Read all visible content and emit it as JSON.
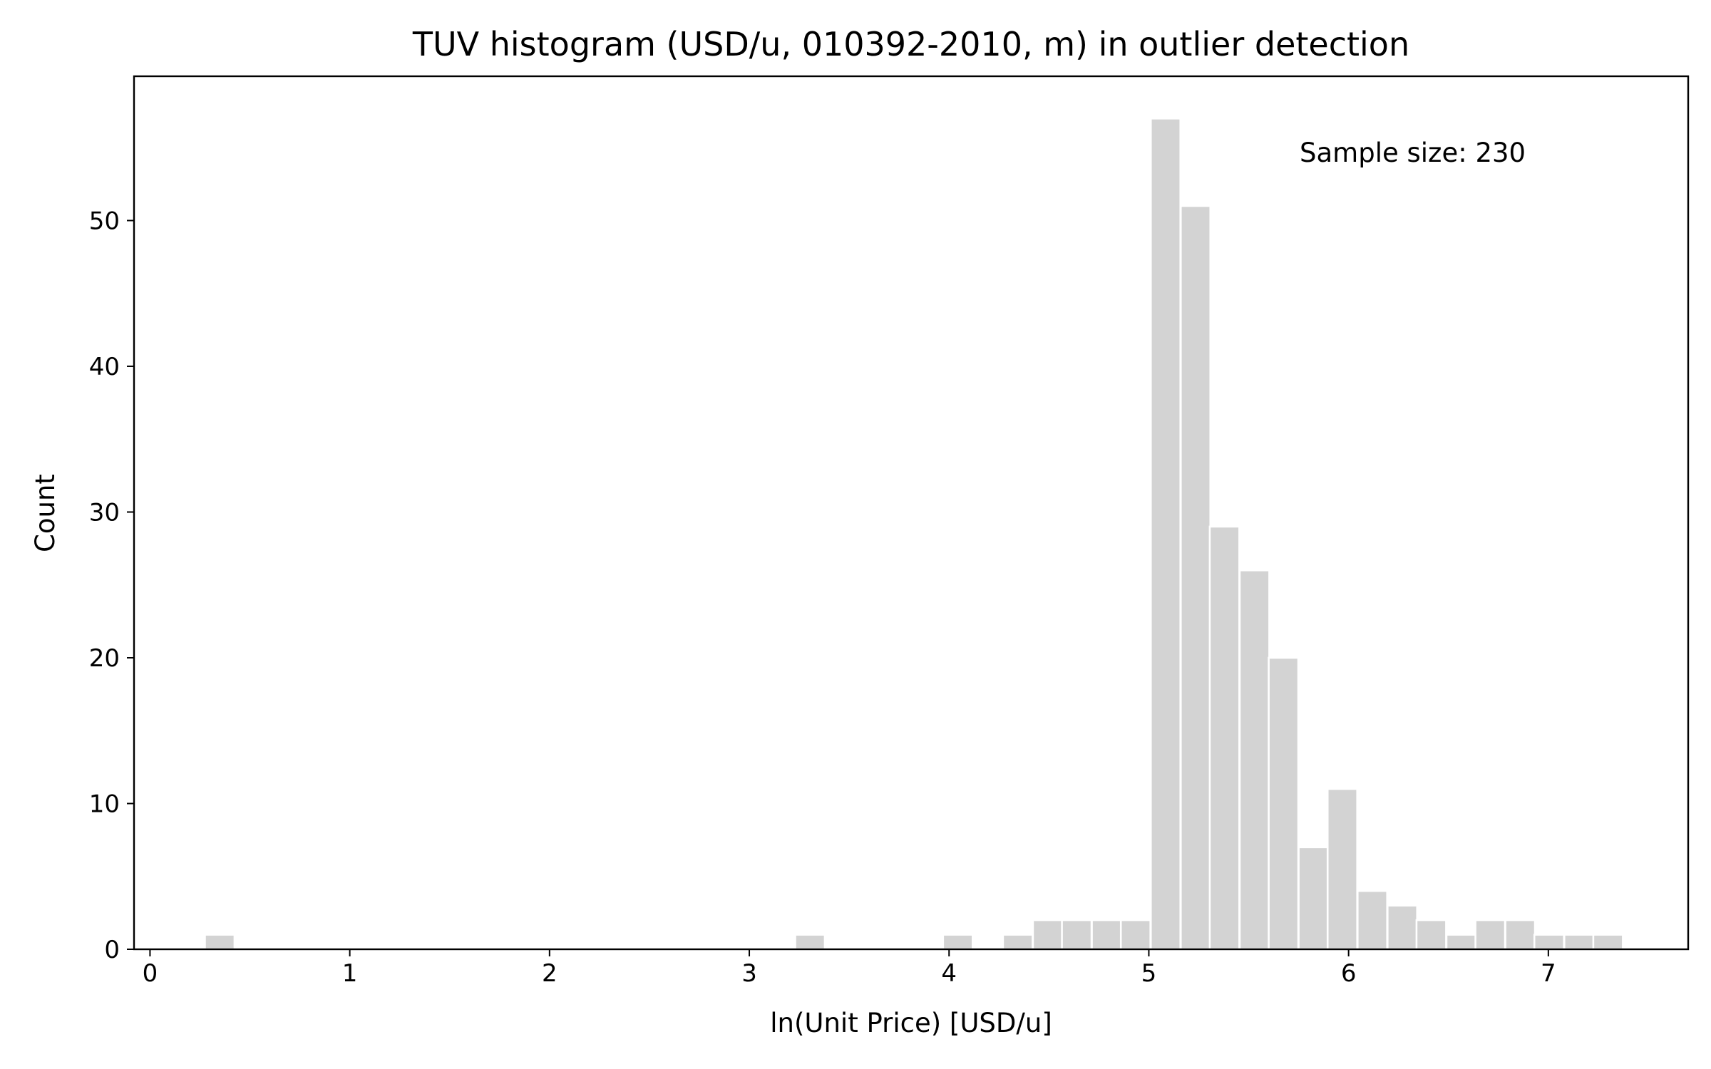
{
  "chart_data": {
    "type": "bar",
    "title": "TUV histogram (USD/u, 010392-2010, m) in outlier detection",
    "xlabel": "ln(Unit Price) [USD/u]",
    "ylabel": "Count",
    "annotation": "Sample size: 230",
    "xlim": [
      -0.08,
      7.7
    ],
    "ylim": [
      0,
      59.9
    ],
    "xticks": [
      0,
      1,
      2,
      3,
      4,
      5,
      6,
      7
    ],
    "yticks": [
      0,
      10,
      20,
      30,
      40,
      50
    ],
    "bin_width": 0.148,
    "bar_color": "#d3d3d3",
    "edge_color": "#ffffff",
    "grid": false,
    "bins": [
      {
        "x": 0.275,
        "count": 1
      },
      {
        "x": 3.23,
        "count": 1
      },
      {
        "x": 3.97,
        "count": 1
      },
      {
        "x": 4.27,
        "count": 1
      },
      {
        "x": 4.42,
        "count": 2
      },
      {
        "x": 4.565,
        "count": 2
      },
      {
        "x": 4.715,
        "count": 2
      },
      {
        "x": 4.86,
        "count": 2
      },
      {
        "x": 5.01,
        "count": 57
      },
      {
        "x": 5.16,
        "count": 51
      },
      {
        "x": 5.305,
        "count": 29
      },
      {
        "x": 5.455,
        "count": 26
      },
      {
        "x": 5.6,
        "count": 20
      },
      {
        "x": 5.75,
        "count": 7
      },
      {
        "x": 5.895,
        "count": 11
      },
      {
        "x": 6.045,
        "count": 4
      },
      {
        "x": 6.195,
        "count": 3
      },
      {
        "x": 6.34,
        "count": 2
      },
      {
        "x": 6.49,
        "count": 1
      },
      {
        "x": 6.635,
        "count": 2
      },
      {
        "x": 6.785,
        "count": 2
      },
      {
        "x": 6.93,
        "count": 1
      },
      {
        "x": 7.08,
        "count": 1
      },
      {
        "x": 7.225,
        "count": 1
      }
    ]
  }
}
